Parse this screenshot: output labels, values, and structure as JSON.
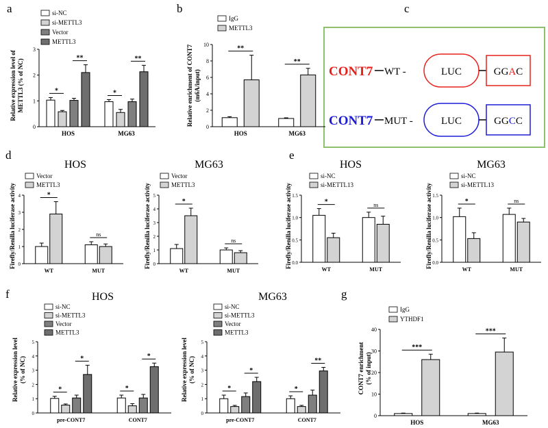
{
  "colors": {
    "white": "#ffffff",
    "lightgray": "#d3d3d3",
    "gray": "#7f7f7f",
    "darkgray": "#6e6e6e",
    "red": "#e8201c",
    "blue": "#1c1cd6",
    "green": "#8cc16c"
  },
  "panels": {
    "a": {
      "label": "a",
      "ylabel_lines": [
        "Relative expression level of",
        "METTL3 (% of NC)"
      ],
      "legend": [
        {
          "name": "si-NC",
          "fill": "white"
        },
        {
          "name": "si-METTL3",
          "fill": "lightgray"
        },
        {
          "name": "Vector",
          "fill": "gray"
        },
        {
          "name": "METTL3",
          "fill": "darkgray"
        }
      ],
      "sig": [
        {
          "text": "*"
        },
        {
          "text": "**"
        },
        {
          "text": "*"
        },
        {
          "text": "**"
        }
      ]
    },
    "b": {
      "label": "b",
      "ylabel_lines": [
        "Relative enrichment of CONT7",
        "(m6A/input)"
      ],
      "legend": [
        {
          "name": "IgG",
          "fill": "white"
        },
        {
          "name": "METTL3",
          "fill": "lightgray"
        }
      ],
      "sig": [
        {
          "text": "**"
        },
        {
          "text": "**"
        }
      ]
    },
    "c": {
      "label": "c",
      "rows": [
        {
          "name": "CONT7",
          "tag": "WT -",
          "luc": "LUC",
          "seq_a": "GG",
          "seq_b": "A",
          "seq_c": "C",
          "color": "red"
        },
        {
          "name": "CONT7",
          "tag": "MUT -",
          "luc": "LUC",
          "seq_a": "GG",
          "seq_b": "C",
          "seq_c": "C",
          "color": "blue"
        }
      ]
    },
    "d": {
      "label": "d",
      "subplots": [
        {
          "title": "HOS",
          "ylabel": "Firefly/Renilla luciferase activity",
          "legend": [
            {
              "name": "Vector",
              "fill": "white"
            },
            {
              "name": "METTL3",
              "fill": "lightgray"
            }
          ],
          "sig": [
            "*",
            "ns"
          ]
        },
        {
          "title": "MG63",
          "ylabel": "Firefly/Renilla luciferase activity",
          "legend": [
            {
              "name": "Vector",
              "fill": "white"
            },
            {
              "name": "METTL3",
              "fill": "lightgray"
            }
          ],
          "sig": [
            "*",
            "ns"
          ]
        }
      ]
    },
    "e": {
      "label": "e",
      "subplots": [
        {
          "title": "HOS",
          "ylabel": "Firefly/Renilla luciferase activity",
          "legend": [
            {
              "name": "si-NC",
              "fill": "white"
            },
            {
              "name": "si-METTL13",
              "fill": "lightgray"
            }
          ],
          "sig": [
            "*",
            "ns"
          ]
        },
        {
          "title": "MG63",
          "ylabel": "Firefly/Renilla luciferase activity",
          "legend": [
            {
              "name": "si-NC",
              "fill": "white"
            },
            {
              "name": "si-METTL13",
              "fill": "lightgray"
            }
          ],
          "sig": [
            "*",
            "ns"
          ]
        }
      ]
    },
    "f": {
      "label": "f",
      "subplots": [
        {
          "title": "HOS",
          "ylabel_lines": [
            "Relative expression level",
            "(% of NC)"
          ],
          "sig": [
            "*",
            "*",
            "*",
            "*"
          ]
        },
        {
          "title": "MG63",
          "ylabel_lines": [
            "Relative expression level",
            "(% of NC)"
          ],
          "sig": [
            "*",
            "*",
            "*",
            "**"
          ]
        }
      ],
      "legend": [
        {
          "name": "si-NC",
          "fill": "white"
        },
        {
          "name": "si-METTL3",
          "fill": "lightgray"
        },
        {
          "name": "Vector",
          "fill": "gray"
        },
        {
          "name": "METTL3",
          "fill": "darkgray"
        }
      ]
    },
    "g": {
      "label": "g",
      "ylabel_lines": [
        "CONT7 enrichment",
        "(% of input)"
      ],
      "legend": [
        {
          "name": "IgG",
          "fill": "white"
        },
        {
          "name": "YTHDF1",
          "fill": "lightgray"
        }
      ],
      "sig": [
        "***",
        "***"
      ]
    }
  },
  "chart_data": [
    {
      "id": "a",
      "type": "bar",
      "categories": [
        "HOS",
        "MG63"
      ],
      "ylim": [
        0,
        3
      ],
      "yticks": [
        0,
        1,
        2,
        3
      ],
      "series": [
        {
          "name": "si-NC",
          "values": [
            1.03,
            0.97
          ],
          "err": [
            0.1,
            0.08
          ]
        },
        {
          "name": "si-METTL3",
          "values": [
            0.58,
            0.55
          ],
          "err": [
            0.05,
            0.12
          ]
        },
        {
          "name": "Vector",
          "values": [
            1.02,
            0.97
          ],
          "err": [
            0.08,
            0.1
          ]
        },
        {
          "name": "METTL3",
          "values": [
            2.1,
            2.13
          ],
          "err": [
            0.3,
            0.25
          ]
        }
      ]
    },
    {
      "id": "b",
      "type": "bar",
      "categories": [
        "HOS",
        "MG63"
      ],
      "ylim": [
        0,
        10
      ],
      "yticks": [
        0,
        2,
        4,
        6,
        8,
        10
      ],
      "series": [
        {
          "name": "IgG",
          "values": [
            1.1,
            1.0
          ],
          "err": [
            0.12,
            0.08
          ]
        },
        {
          "name": "METTL3",
          "values": [
            5.7,
            6.3
          ],
          "err": [
            3.0,
            0.8
          ]
        }
      ]
    },
    {
      "id": "d1",
      "type": "bar",
      "title": "HOS",
      "categories": [
        "WT",
        "MUT"
      ],
      "ylim": [
        0,
        4
      ],
      "yticks": [
        0,
        1,
        2,
        3,
        4
      ],
      "series": [
        {
          "name": "Vector",
          "values": [
            1.0,
            1.1
          ],
          "err": [
            0.2,
            0.18
          ]
        },
        {
          "name": "METTL3",
          "values": [
            2.9,
            1.0
          ],
          "err": [
            0.72,
            0.15
          ]
        }
      ]
    },
    {
      "id": "d2",
      "type": "bar",
      "title": "MG63",
      "categories": [
        "WT",
        "MUT"
      ],
      "ylim": [
        0,
        5
      ],
      "yticks": [
        0,
        1,
        2,
        3,
        4,
        5
      ],
      "series": [
        {
          "name": "Vector",
          "values": [
            1.1,
            1.0
          ],
          "err": [
            0.3,
            0.15
          ]
        },
        {
          "name": "METTL3",
          "values": [
            3.5,
            0.8
          ],
          "err": [
            0.55,
            0.15
          ]
        }
      ]
    },
    {
      "id": "e1",
      "type": "bar",
      "title": "HOS",
      "categories": [
        "WT",
        "MUT"
      ],
      "ylim": [
        0,
        1.5
      ],
      "yticks": [
        0,
        0.5,
        1.0,
        1.5
      ],
      "series": [
        {
          "name": "si-NC",
          "values": [
            1.05,
            1.0
          ],
          "err": [
            0.15,
            0.12
          ]
        },
        {
          "name": "si-METTL13",
          "values": [
            0.55,
            0.85
          ],
          "err": [
            0.1,
            0.18
          ]
        }
      ]
    },
    {
      "id": "e2",
      "type": "bar",
      "title": "MG63",
      "categories": [
        "WT",
        "MUT"
      ],
      "ylim": [
        0,
        1.5
      ],
      "yticks": [
        0,
        0.5,
        1.0,
        1.5
      ],
      "series": [
        {
          "name": "si-NC",
          "values": [
            1.02,
            1.07
          ],
          "err": [
            0.19,
            0.14
          ]
        },
        {
          "name": "si-METTL13",
          "values": [
            0.53,
            0.9
          ],
          "err": [
            0.13,
            0.08
          ]
        }
      ]
    },
    {
      "id": "f1",
      "type": "bar",
      "title": "HOS",
      "categories": [
        "pre-CONT7",
        "CONT7"
      ],
      "ylim": [
        0,
        5
      ],
      "yticks": [
        0,
        1,
        2,
        3,
        4,
        5
      ],
      "series": [
        {
          "name": "si-NC",
          "values": [
            1.02,
            1.05
          ],
          "err": [
            0.15,
            0.2
          ]
        },
        {
          "name": "si-METTL3",
          "values": [
            0.55,
            0.5
          ],
          "err": [
            0.08,
            0.15
          ]
        },
        {
          "name": "Vector",
          "values": [
            1.05,
            1.05
          ],
          "err": [
            0.2,
            0.25
          ]
        },
        {
          "name": "METTL3",
          "values": [
            2.7,
            3.25
          ],
          "err": [
            0.65,
            0.25
          ]
        }
      ]
    },
    {
      "id": "f2",
      "type": "bar",
      "title": "MG63",
      "categories": [
        "pre-CONT7",
        "CONT7"
      ],
      "ylim": [
        0,
        5
      ],
      "yticks": [
        0,
        1,
        2,
        3,
        4,
        5
      ],
      "series": [
        {
          "name": "si-NC",
          "values": [
            1.0,
            1.0
          ],
          "err": [
            0.25,
            0.2
          ]
        },
        {
          "name": "si-METTL3",
          "values": [
            0.45,
            0.45
          ],
          "err": [
            0.08,
            0.08
          ]
        },
        {
          "name": "Vector",
          "values": [
            1.15,
            1.25
          ],
          "err": [
            0.25,
            0.35
          ]
        },
        {
          "name": "METTL3",
          "values": [
            2.2,
            2.95
          ],
          "err": [
            0.3,
            0.25
          ]
        }
      ]
    },
    {
      "id": "g",
      "type": "bar",
      "categories": [
        "HOS",
        "MG63"
      ],
      "ylim": [
        0,
        40
      ],
      "yticks": [
        0,
        10,
        20,
        30,
        40
      ],
      "series": [
        {
          "name": "IgG",
          "values": [
            1.0,
            1.0
          ],
          "err": [
            0.2,
            0.2
          ]
        },
        {
          "name": "YTHDF1",
          "values": [
            26,
            29.5
          ],
          "err": [
            2.5,
            6.5
          ]
        }
      ]
    }
  ]
}
